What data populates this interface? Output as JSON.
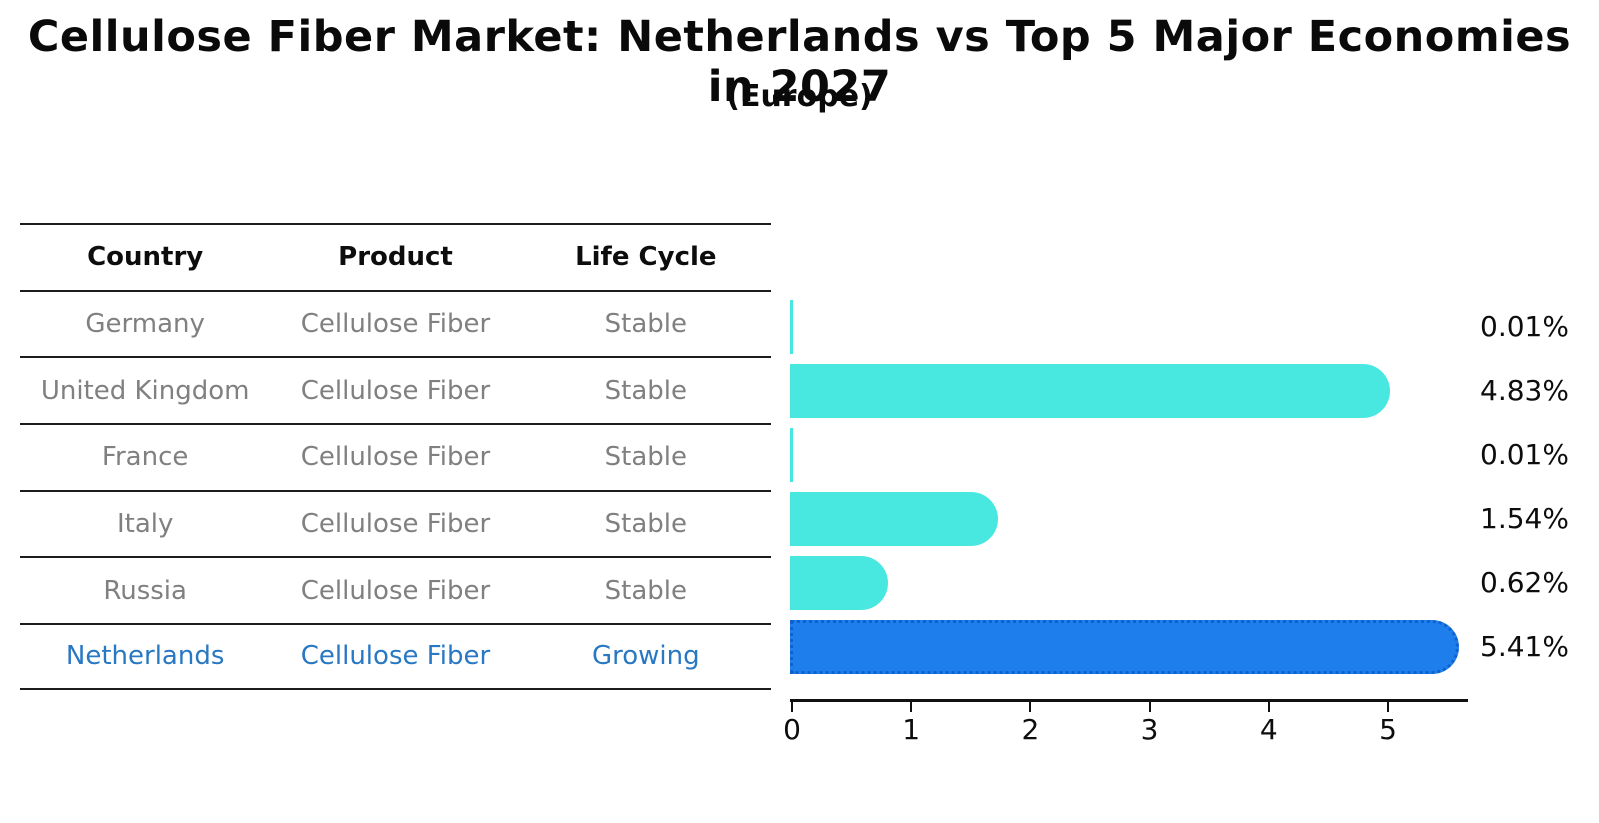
{
  "title": "Cellulose Fiber Market: Netherlands vs Top 5 Major Economies in 2027",
  "subtitle": "(Europe)",
  "table": {
    "headers": [
      "Country",
      "Product",
      "Life Cycle"
    ],
    "rows": [
      {
        "country": "Germany",
        "product": "Cellulose Fiber",
        "life_cycle": "Stable",
        "highlighted": false
      },
      {
        "country": "United Kingdom",
        "product": "Cellulose Fiber",
        "life_cycle": "Stable",
        "highlighted": false
      },
      {
        "country": "France",
        "product": "Cellulose Fiber",
        "life_cycle": "Stable",
        "highlighted": false
      },
      {
        "country": "Italy",
        "product": "Cellulose Fiber",
        "life_cycle": "Stable",
        "highlighted": false
      },
      {
        "country": "Russia",
        "product": "Cellulose Fiber",
        "life_cycle": "Stable",
        "highlighted": false
      },
      {
        "country": "Netherlands",
        "product": "Cellulose Fiber",
        "life_cycle": "Growing",
        "highlighted": true
      }
    ]
  },
  "chart_data": {
    "type": "bar",
    "orientation": "horizontal",
    "categories": [
      "Germany",
      "United Kingdom",
      "France",
      "Italy",
      "Russia",
      "Netherlands"
    ],
    "values": [
      0.01,
      4.83,
      0.01,
      1.54,
      0.62,
      5.41
    ],
    "value_labels": [
      "0.01%",
      "4.83%",
      "0.01%",
      "1.54%",
      "0.62%",
      "5.41%"
    ],
    "highlight_index": 5,
    "xticks": [
      "0",
      "1",
      "2",
      "3",
      "4",
      "5"
    ],
    "xlim": [
      0,
      5.67
    ],
    "grid": false,
    "legend": "none",
    "bar_color": "#48e8e0",
    "highlight_bar_color": "#1e7eeb",
    "highlight_border_color": "#0d62d0"
  },
  "colors": {
    "background": "#ffffff",
    "title_text": "#0a0a0a",
    "table_text": "#808080",
    "table_header_text": "#0d0d0d",
    "highlight_text": "#2878c3",
    "axis": "#111111"
  }
}
